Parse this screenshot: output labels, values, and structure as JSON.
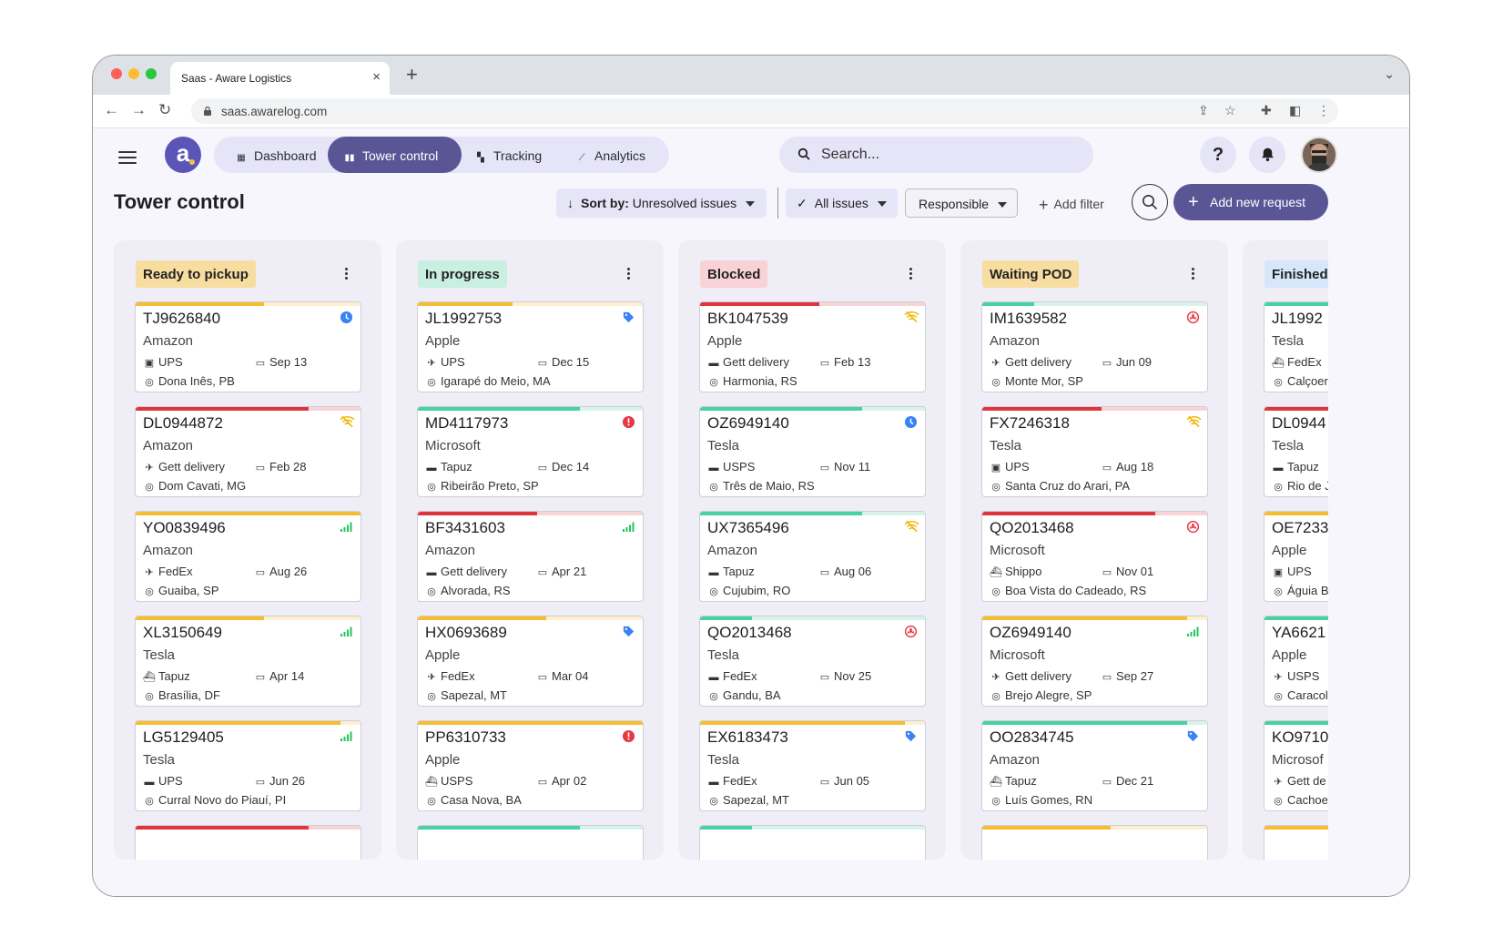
{
  "browser": {
    "tab_title": "Saas - Aware Logistics",
    "tab_close": "×",
    "new_tab": "+",
    "url": "saas.awarelog.com"
  },
  "app": {
    "logo_letter": "a",
    "nav": [
      {
        "label": "Dashboard",
        "icon": "grid-icon"
      },
      {
        "label": "Tower control",
        "icon": "tower-icon",
        "active": true
      },
      {
        "label": "Tracking",
        "icon": "map-icon"
      },
      {
        "label": "Analytics",
        "icon": "chart-icon"
      }
    ],
    "search_placeholder": "Search...",
    "help": "?"
  },
  "page": {
    "title": "Tower control",
    "sort_prefix": "Sort by:",
    "sort_value": "Unresolved issues",
    "issues_filter": "All issues",
    "responsible_filter": "Responsible",
    "add_filter": "Add filter",
    "add_request": "Add new request"
  },
  "colors": {
    "accent": "#5a5696",
    "nav_tint": "#e6e4f7",
    "status": {
      "clock": "#3b82f6",
      "tag": "#3b82f6",
      "error": "#e53945",
      "wifi": "#f2b705",
      "signal": "#22c55e",
      "danger": "#e53945"
    },
    "bars": {
      "yellow": "#f5bd2f",
      "red": "#e0353d",
      "green": "#48d1a3"
    }
  },
  "columns": [
    {
      "title": "Ready to pickup",
      "bg": "#f8dda0",
      "cards": [
        {
          "id": "TJ9626840",
          "company": "Amazon",
          "carrier": "UPS",
          "mode": "bus",
          "date": "Sep 13",
          "location": "Dona Inês, PB",
          "status_icon": "clock-icon",
          "progress_color": "yellow",
          "progress": 0.57
        },
        {
          "id": "DL0944872",
          "company": "Amazon",
          "carrier": "Gett delivery",
          "mode": "plane",
          "date": "Feb 28",
          "location": "Dom Cavati, MG",
          "status_icon": "wifi-off-icon",
          "progress_color": "red",
          "progress": 0.77
        },
        {
          "id": "YO0839496",
          "company": "Amazon",
          "carrier": "FedEx",
          "mode": "plane",
          "date": "Aug 26",
          "location": "Guaiba, SP",
          "status_icon": "signal-icon",
          "progress_color": "yellow",
          "progress": 1.0
        },
        {
          "id": "XL3150649",
          "company": "Tesla",
          "carrier": "Tapuz",
          "mode": "ship",
          "date": "Apr 14",
          "location": "Brasília, DF",
          "status_icon": "signal-icon",
          "progress_color": "yellow",
          "progress": 0.57
        },
        {
          "id": "LG5129405",
          "company": "Tesla",
          "carrier": "UPS",
          "mode": "truck",
          "date": "Jun 26",
          "location": "Curral Novo do Piauí, PI",
          "status_icon": "signal-icon",
          "progress_color": "yellow",
          "progress": 0.91
        },
        {
          "id": "",
          "company": "",
          "carrier": "",
          "mode": "",
          "date": "",
          "location": "",
          "status_icon": "",
          "progress_color": "red",
          "progress": 0.77
        }
      ]
    },
    {
      "title": "In progress",
      "bg": "#c9efe0",
      "cards": [
        {
          "id": "JL1992753",
          "company": "Apple",
          "carrier": "UPS",
          "mode": "plane",
          "date": "Dec 15",
          "location": "Igarapé do Meio, MA",
          "status_icon": "tag-icon",
          "progress_color": "yellow",
          "progress": 0.42
        },
        {
          "id": "MD4117973",
          "company": "Microsoft",
          "carrier": "Tapuz",
          "mode": "truck",
          "date": "Dec 14",
          "location": "Ribeirão Preto, SP",
          "status_icon": "alert-icon",
          "progress_color": "green",
          "progress": 0.72
        },
        {
          "id": "BF3431603",
          "company": "Amazon",
          "carrier": "Gett delivery",
          "mode": "truck",
          "date": "Apr 21",
          "location": "Alvorada, RS",
          "status_icon": "signal-icon",
          "progress_color": "red",
          "progress": 0.53
        },
        {
          "id": "HX0693689",
          "company": "Apple",
          "carrier": "FedEx",
          "mode": "plane",
          "date": "Mar 04",
          "location": "Sapezal, MT",
          "status_icon": "tag-icon",
          "progress_color": "yellow",
          "progress": 0.57
        },
        {
          "id": "PP6310733",
          "company": "Apple",
          "carrier": "USPS",
          "mode": "ship",
          "date": "Apr 02",
          "location": "Casa Nova, BA",
          "status_icon": "alert-icon",
          "progress_color": "yellow",
          "progress": 1.0
        },
        {
          "id": "",
          "company": "",
          "carrier": "",
          "mode": "",
          "date": "",
          "location": "",
          "status_icon": "",
          "progress_color": "green",
          "progress": 0.72
        }
      ]
    },
    {
      "title": "Blocked",
      "bg": "#f8d2d4",
      "cards": [
        {
          "id": "BK1047539",
          "company": "Apple",
          "carrier": "Gett delivery",
          "mode": "truck",
          "date": "Feb 13",
          "location": "Harmonia, RS",
          "status_icon": "wifi-off-icon",
          "progress_color": "red",
          "progress": 0.53
        },
        {
          "id": "OZ6949140",
          "company": "Tesla",
          "carrier": "USPS",
          "mode": "truck",
          "date": "Nov 11",
          "location": "Três de Maio, RS",
          "status_icon": "clock-icon",
          "progress_color": "green",
          "progress": 0.72
        },
        {
          "id": "UX7365496",
          "company": "Amazon",
          "carrier": "Tapuz",
          "mode": "truck",
          "date": "Aug 06",
          "location": "Cujubim, RO",
          "status_icon": "wifi-off-icon",
          "progress_color": "green",
          "progress": 0.72
        },
        {
          "id": "QO2013468",
          "company": "Tesla",
          "carrier": "FedEx",
          "mode": "truck",
          "date": "Nov 25",
          "location": "Gandu, BA",
          "status_icon": "danger-icon",
          "progress_color": "green",
          "progress": 0.23
        },
        {
          "id": "EX6183473",
          "company": "Tesla",
          "carrier": "FedEx",
          "mode": "truck",
          "date": "Jun 05",
          "location": "Sapezal, MT",
          "status_icon": "tag-icon",
          "progress_color": "yellow",
          "progress": 0.91
        },
        {
          "id": "",
          "company": "",
          "carrier": "",
          "mode": "",
          "date": "",
          "location": "",
          "status_icon": "",
          "progress_color": "green",
          "progress": 0.23
        }
      ]
    },
    {
      "title": "Waiting POD",
      "bg": "#f8dda0",
      "cards": [
        {
          "id": "IM1639582",
          "company": "Amazon",
          "carrier": "Gett delivery",
          "mode": "plane",
          "date": "Jun 09",
          "location": "Monte Mor, SP",
          "status_icon": "danger-icon",
          "progress_color": "green",
          "progress": 0.23
        },
        {
          "id": "FX7246318",
          "company": "Tesla",
          "carrier": "UPS",
          "mode": "bus",
          "date": "Aug 18",
          "location": "Santa Cruz do Arari, PA",
          "status_icon": "wifi-off-icon",
          "progress_color": "red",
          "progress": 0.53
        },
        {
          "id": "QO2013468",
          "company": "Microsoft",
          "carrier": "Shippo",
          "mode": "ship",
          "date": "Nov 01",
          "location": "Boa Vista do Cadeado, RS",
          "status_icon": "danger-icon",
          "progress_color": "red",
          "progress": 0.77
        },
        {
          "id": "OZ6949140",
          "company": "Microsoft",
          "carrier": "Gett delivery",
          "mode": "plane",
          "date": "Sep 27",
          "location": "Brejo Alegre, SP",
          "status_icon": "signal-icon",
          "progress_color": "yellow",
          "progress": 0.91
        },
        {
          "id": "OO2834745",
          "company": "Amazon",
          "carrier": "Tapuz",
          "mode": "ship",
          "date": "Dec 21",
          "location": "Luís Gomes, RN",
          "status_icon": "tag-icon",
          "progress_color": "green",
          "progress": 0.91
        },
        {
          "id": "",
          "company": "",
          "carrier": "",
          "mode": "",
          "date": "",
          "location": "",
          "status_icon": "",
          "progress_color": "yellow",
          "progress": 0.57
        }
      ]
    },
    {
      "title": "Finished",
      "bg": "#d6e6fb",
      "cards": [
        {
          "id": "JL1992",
          "company": "Tesla",
          "carrier": "FedEx",
          "mode": "ship",
          "date": "",
          "location": "Calçoer",
          "status_icon": "",
          "progress_color": "green",
          "progress": 1.0
        },
        {
          "id": "DL0944",
          "company": "Tesla",
          "carrier": "Tapuz",
          "mode": "truck",
          "date": "",
          "location": "Rio de J",
          "status_icon": "",
          "progress_color": "red",
          "progress": 1.0
        },
        {
          "id": "OE7233",
          "company": "Apple",
          "carrier": "UPS",
          "mode": "bus",
          "date": "",
          "location": "Águia B",
          "status_icon": "",
          "progress_color": "yellow",
          "progress": 1.0
        },
        {
          "id": "YA6621",
          "company": "Apple",
          "carrier": "USPS",
          "mode": "plane",
          "date": "",
          "location": "Caracol",
          "status_icon": "",
          "progress_color": "green",
          "progress": 1.0
        },
        {
          "id": "KO9710",
          "company": "Microsof",
          "carrier": "Gett de",
          "mode": "plane",
          "date": "",
          "location": "Cachoe",
          "status_icon": "",
          "progress_color": "green",
          "progress": 1.0
        },
        {
          "id": "",
          "company": "",
          "carrier": "",
          "mode": "",
          "date": "",
          "location": "",
          "status_icon": "",
          "progress_color": "yellow",
          "progress": 1.0
        }
      ]
    }
  ]
}
